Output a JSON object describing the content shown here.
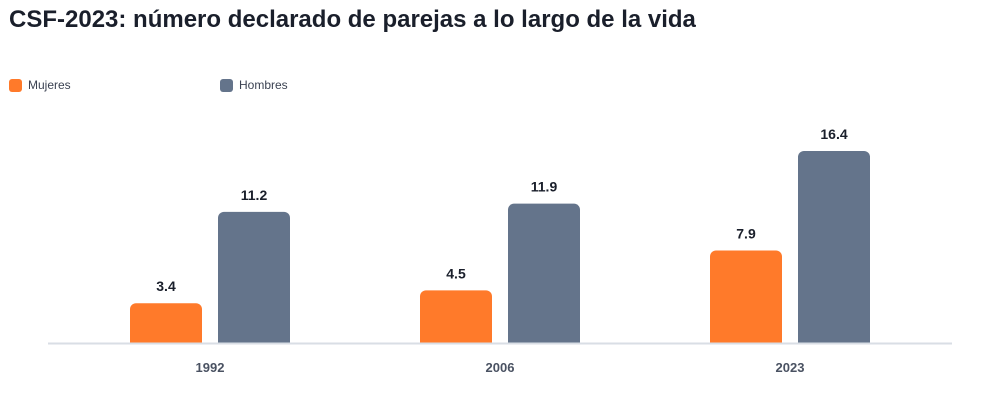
{
  "chart_data": {
    "type": "bar",
    "title": "CSF-2023: número declarado de parejas a lo largo de la vida",
    "categories": [
      "1992",
      "2006",
      "2023"
    ],
    "series": [
      {
        "name": "Mujeres",
        "color": "#ff7a2a",
        "values": [
          3.4,
          4.5,
          7.9
        ],
        "labels": [
          "3.4",
          "4.5",
          "7.9"
        ]
      },
      {
        "name": "Hombres",
        "color": "#64748b",
        "values": [
          11.2,
          11.9,
          16.4
        ],
        "labels": [
          "11.2",
          "11.9",
          "16.4"
        ]
      }
    ],
    "ylim": [
      0,
      16.4
    ],
    "grid": false,
    "legend_position": "top-left",
    "axis_color": "#d9dee5"
  }
}
